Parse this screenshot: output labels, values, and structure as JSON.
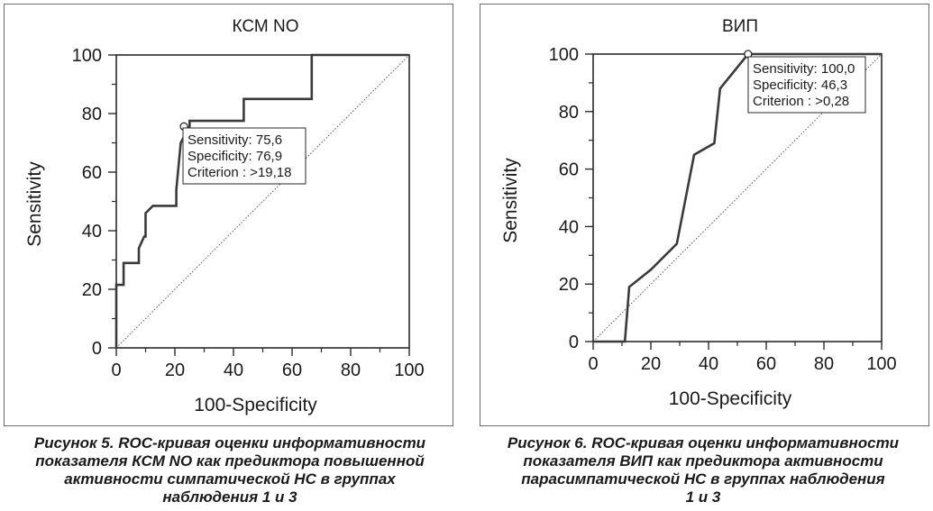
{
  "chart_data": [
    {
      "type": "line",
      "title": "КСМ NO",
      "xlabel": "100-Specificity",
      "ylabel": "Sensitivity",
      "xlim": [
        0,
        100
      ],
      "ylim": [
        0,
        100
      ],
      "xticks": [
        "0",
        "20",
        "40",
        "60",
        "80",
        "100"
      ],
      "yticks": [
        "0",
        "20",
        "40",
        "60",
        "80",
        "100"
      ],
      "series": [
        {
          "x": [
            0,
            0,
            2.5,
            2.5,
            7.7,
            7.7,
            9.5,
            10,
            10,
            12.5,
            20.5,
            20.5,
            22,
            25,
            25,
            43.5,
            43.5,
            66.7,
            66.7,
            100
          ],
          "y": [
            0,
            21.5,
            21.5,
            29,
            29,
            34,
            38,
            38,
            46,
            48.5,
            48.5,
            54,
            70,
            75.6,
            77.5,
            77.5,
            85,
            85,
            100,
            100
          ]
        }
      ],
      "reference_line": {
        "x": [
          0,
          100
        ],
        "y": [
          0,
          100
        ]
      },
      "marker": {
        "x": 23.1,
        "y": 75.6
      },
      "annotation": [
        "Sensitivity: 75,6",
        "Specificity: 76,9",
        "Criterion : >19,18"
      ],
      "grid": false
    },
    {
      "type": "line",
      "title": "ВИП",
      "xlabel": "100-Specificity",
      "ylabel": "Sensitivity",
      "xlim": [
        0,
        100
      ],
      "ylim": [
        0,
        100
      ],
      "xticks": [
        "0",
        "20",
        "40",
        "60",
        "80",
        "100"
      ],
      "yticks": [
        "0",
        "20",
        "40",
        "60",
        "80",
        "100"
      ],
      "series": [
        {
          "x": [
            0,
            11,
            12.5,
            20,
            29,
            35,
            42,
            44,
            53.7,
            100
          ],
          "y": [
            0,
            0,
            19,
            25,
            34,
            65,
            69,
            88,
            100,
            100
          ]
        }
      ],
      "reference_line": {
        "x": [
          0,
          100
        ],
        "y": [
          0,
          100
        ]
      },
      "marker": {
        "x": 53.7,
        "y": 100
      },
      "annotation": [
        "Sensitivity: 100,0",
        "Specificity: 46,3",
        "Criterion : >0,28"
      ],
      "grid": false
    }
  ],
  "captions": {
    "left": [
      "Рисунок 5. ROC-кривая оценки информативности",
      "показателя КСМ NO как предиктора повышенной",
      "активности симпатической НС в группах",
      "наблюдения 1 и 3"
    ],
    "right": [
      "Рисунок 6. ROC-кривая оценки информативности",
      "показателя ВИП как предиктора активности",
      "парасимпатической НС в группах наблюдения",
      "1 и 3"
    ]
  }
}
